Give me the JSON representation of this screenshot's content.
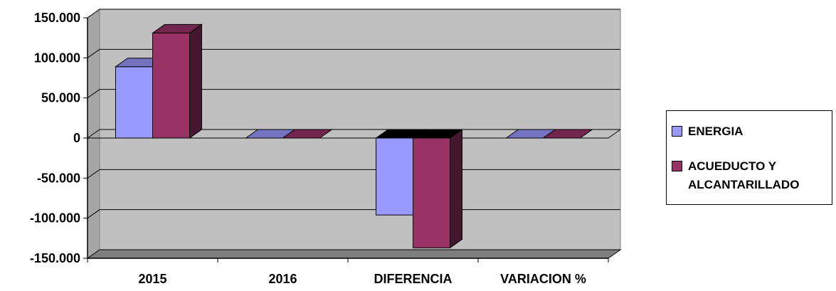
{
  "chart_data": {
    "type": "bar",
    "title": "",
    "xlabel": "",
    "ylabel": "",
    "categories": [
      "2015",
      "2016",
      "DIFERENCIA",
      "VARIACION %"
    ],
    "series": [
      {
        "name": "ENERGIA",
        "color": "#9999ff",
        "values": [
          89000,
          0,
          -96000,
          0
        ]
      },
      {
        "name": "ACUEDUCTO Y ALCANTARILLADO",
        "color": "#993366",
        "values": [
          131000,
          0,
          -137000,
          0
        ]
      }
    ],
    "ylim": [
      -150000,
      150000
    ],
    "yticks": [
      150000,
      100000,
      50000,
      0,
      -50000,
      -100000,
      -150000
    ],
    "ytick_labels": [
      "150.000",
      "100.000",
      "50.000",
      "0",
      "-50.000",
      "-100.000",
      "-150.000"
    ],
    "grid": true,
    "style": "3d-clustered-column",
    "plot_area_color": "#c0c0c0",
    "legend": {
      "placement": "right",
      "items": [
        "ENERGIA",
        "ACUEDUCTO Y\nALCANTARILLADO"
      ]
    }
  }
}
